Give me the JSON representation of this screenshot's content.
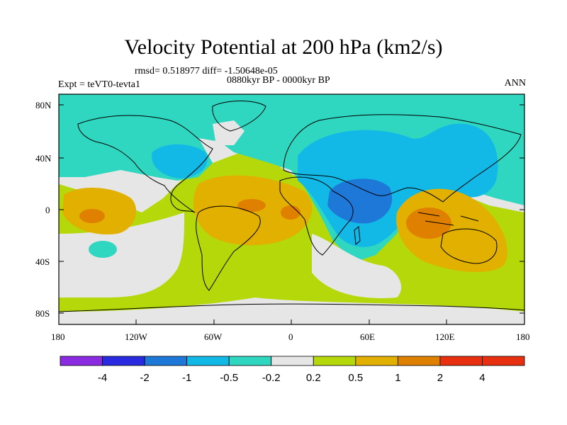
{
  "title": "Velocity Potential at 200 hPa (km2/s)",
  "stats_line": "rmsd= 0.518977 diff= -1.50648e-05",
  "period_line": "0880kyr BP - 0000kyr BP",
  "experiment_label": "Expt = teVT0-tevta1",
  "season_label": "ANN",
  "lat_ticks": [
    "80N",
    "40N",
    "0",
    "40S",
    "80S"
  ],
  "lon_ticks": [
    "180",
    "120W",
    "60W",
    "0",
    "60E",
    "120E",
    "180"
  ],
  "colorbar": {
    "labels": [
      "-4",
      "-2",
      "-1",
      "-0.5",
      "-0.2",
      "0.2",
      "0.5",
      "1",
      "2",
      "4"
    ],
    "colors": [
      "#8a2be2",
      "#2a2ae0",
      "#1e78d8",
      "#12b8e6",
      "#2fd6c0",
      "#e6e6e6",
      "#b4d80a",
      "#e2b000",
      "#e08000",
      "#e83010"
    ]
  },
  "map_colors": {
    "ocean_neg_light": "#2fd6c0",
    "neg_medium": "#12b8e6",
    "neg_strong": "#1e78d8",
    "neutral": "#e6e6e6",
    "pos_light": "#b4d80a",
    "pos_medium": "#e2b000",
    "pos_strong": "#e08000"
  }
}
